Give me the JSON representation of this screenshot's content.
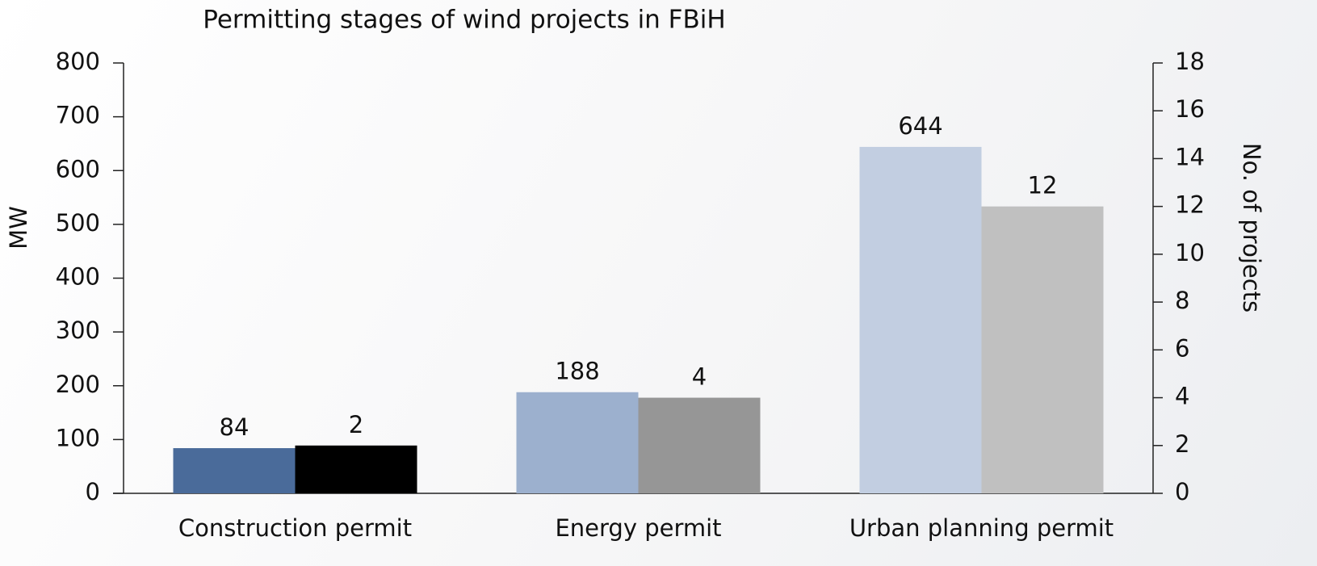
{
  "chart_data": {
    "type": "bar",
    "title": "Permitting stages of wind projects in FBiH",
    "categories": [
      "Construction permit",
      "Energy permit",
      "Urban planning permit"
    ],
    "series": [
      {
        "name": "MW",
        "colors": [
          "#4a6b9a",
          "#9cb0ce",
          "#c2cee1"
        ],
        "values": [
          84,
          188,
          644
        ]
      },
      {
        "name": "No. of projects",
        "axis": "y2",
        "colors": [
          "#000000",
          "#969696",
          "#c0c0c0"
        ],
        "values": [
          2,
          4,
          12
        ]
      }
    ],
    "ylabel": "MW",
    "y2label": "No. of projects",
    "ylim": [
      0,
      800
    ],
    "yticks": [
      0,
      100,
      200,
      300,
      400,
      500,
      600,
      700,
      800
    ],
    "y2lim": [
      0,
      18
    ],
    "y2ticks": [
      0,
      2,
      4,
      6,
      8,
      10,
      12,
      14,
      16,
      18
    ],
    "grid": false
  }
}
